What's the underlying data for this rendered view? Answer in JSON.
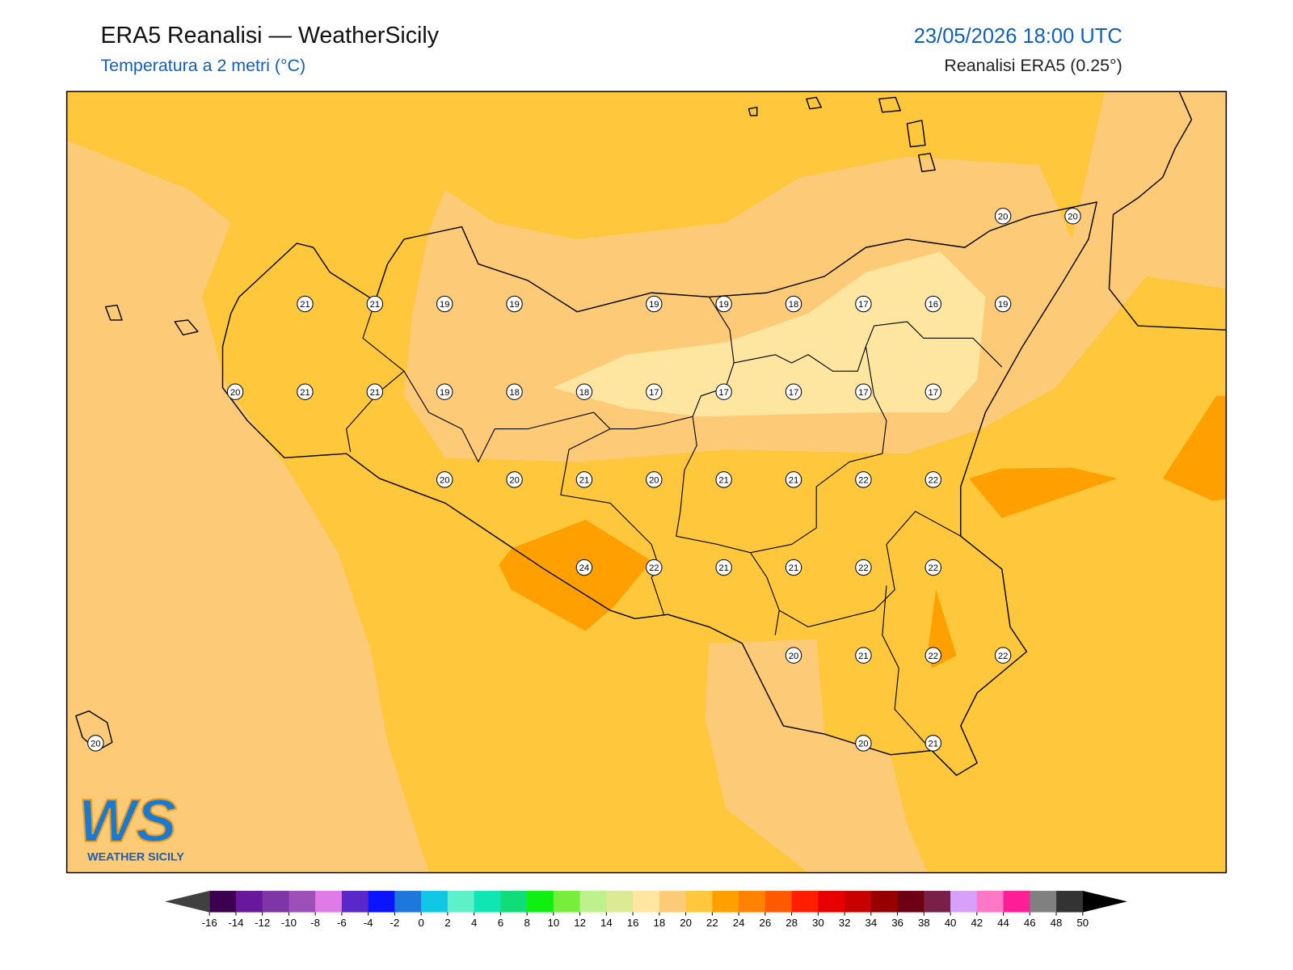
{
  "header": {
    "title": "ERA5 Reanalisi — WeatherSicily",
    "subtitle": "Temperatura a 2 metri (°C)",
    "datetime": "23/05/2026 18:00 UTC",
    "source": "Reanalisi ERA5 (0.25°)"
  },
  "points": [
    [
      null,
      null,
      null,
      null,
      null,
      null,
      null,
      null,
      null,
      null,
      null,
      null,
      null,
      20,
      20
    ],
    [
      null,
      null,
      null,
      21,
      21,
      19,
      19,
      null,
      19,
      19,
      18,
      17,
      16,
      19,
      null
    ],
    [
      null,
      null,
      20,
      21,
      21,
      19,
      18,
      18,
      17,
      17,
      17,
      17,
      17,
      null,
      null
    ],
    [
      null,
      null,
      null,
      null,
      null,
      20,
      20,
      21,
      20,
      21,
      21,
      22,
      22,
      null,
      null
    ],
    [
      null,
      null,
      null,
      null,
      null,
      null,
      null,
      24,
      22,
      21,
      21,
      22,
      22,
      null,
      null
    ],
    [
      null,
      null,
      null,
      null,
      null,
      null,
      null,
      null,
      null,
      null,
      20,
      21,
      22,
      22,
      null
    ],
    [
      20,
      null,
      null,
      null,
      null,
      null,
      null,
      null,
      null,
      null,
      null,
      20,
      21,
      null,
      null
    ]
  ],
  "colorbar": {
    "ticks": [
      -16,
      -14,
      -12,
      -10,
      -8,
      -6,
      -4,
      -2,
      0,
      2,
      4,
      6,
      8,
      10,
      12,
      14,
      16,
      18,
      20,
      22,
      24,
      26,
      28,
      30,
      32,
      34,
      36,
      38,
      40,
      42,
      44,
      46,
      48,
      50
    ],
    "colors": [
      "#3c0050",
      "#68189a",
      "#7e35a5",
      "#9c50b8",
      "#e07ae6",
      "#5a28c8",
      "#0a14ff",
      "#1e78dc",
      "#10c8e6",
      "#5ef0c8",
      "#10e6b4",
      "#10dc78",
      "#10f010",
      "#78ee3c",
      "#bef08c",
      "#dcea96",
      "#ffe6a0",
      "#fdca78",
      "#ffc83c",
      "#ffa000",
      "#ff8200",
      "#ff5a00",
      "#ff1e00",
      "#e60000",
      "#c80000",
      "#960000",
      "#6e0014",
      "#7a2048",
      "#d8a0f8",
      "#ff78c8",
      "#ff1e96",
      "#808080",
      "#333333"
    ],
    "under_color": "#404040",
    "over_color": "#000000"
  },
  "logo": {
    "text": "WS",
    "caption": "WEATHER SICILY"
  }
}
